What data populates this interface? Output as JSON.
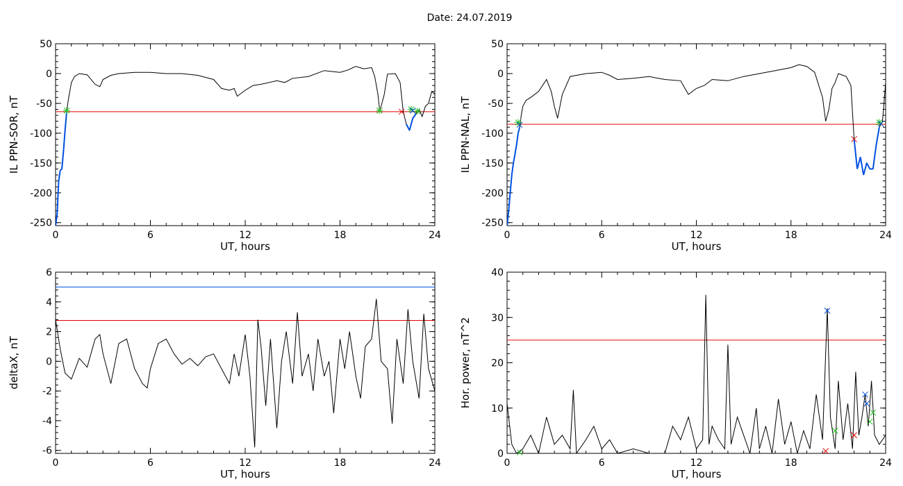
{
  "title": "Date:  24.07.2019",
  "colors": {
    "data": "#000000",
    "threshold": "#e00000",
    "blue": "#0050e0",
    "green": "#20c020",
    "red_marker": "#e00000",
    "blue_marker": "#0050e0"
  },
  "chart_data": [
    {
      "type": "line",
      "ylabel": "IL PPN-SOR, nT",
      "xlabel": "UT, hours",
      "xlim": [
        0,
        24
      ],
      "ylim": [
        -255,
        50
      ],
      "xticks": [
        0,
        6,
        12,
        18,
        24
      ],
      "yticks": [
        50,
        0,
        -50,
        -100,
        -150,
        -200,
        -250
      ],
      "threshold": -64,
      "x": [
        0,
        0.1,
        0.2,
        0.3,
        0.4,
        0.5,
        0.6,
        0.7,
        0.8,
        0.9,
        1.0,
        1.2,
        1.5,
        2.0,
        2.5,
        2.8,
        3.0,
        3.5,
        4.0,
        5.0,
        6.0,
        7.0,
        8.0,
        9.0,
        10.0,
        10.5,
        11.0,
        11.3,
        11.5,
        12.0,
        12.5,
        13.0,
        14.0,
        14.5,
        15.0,
        16.0,
        17.0,
        18.0,
        18.5,
        19.0,
        19.5,
        20.0,
        20.2,
        20.4,
        20.5,
        20.6,
        20.8,
        21.0,
        21.5,
        21.8,
        22.0,
        22.2,
        22.4,
        22.6,
        22.8,
        23.0,
        23.2,
        23.4,
        23.6,
        23.8,
        24.0
      ],
      "y": [
        -255,
        -235,
        -180,
        -162,
        -160,
        -130,
        -95,
        -65,
        -45,
        -30,
        -15,
        -5,
        0,
        -2,
        -18,
        -22,
        -10,
        -3,
        0,
        2,
        2,
        0,
        0,
        -3,
        -10,
        -25,
        -28,
        -25,
        -38,
        -28,
        -20,
        -18,
        -12,
        -15,
        -8,
        -5,
        5,
        2,
        6,
        12,
        8,
        10,
        -5,
        -35,
        -60,
        -55,
        -35,
        -1,
        0,
        -15,
        -64,
        -85,
        -95,
        -75,
        -68,
        -60,
        -72,
        -55,
        -50,
        -30,
        -35
      ],
      "markers": [
        {
          "x": 0.7,
          "y": -62,
          "color": "green",
          "shape": "star"
        },
        {
          "x": 20.5,
          "y": -62,
          "color": "red",
          "shape": "x"
        },
        {
          "x": 20.5,
          "y": -62,
          "color": "green",
          "shape": "star"
        },
        {
          "x": 21.9,
          "y": -64,
          "color": "red",
          "shape": "x"
        },
        {
          "x": 22.5,
          "y": -60,
          "color": "green",
          "shape": "star"
        },
        {
          "x": 22.9,
          "y": -63,
          "color": "green",
          "shape": "star"
        },
        {
          "x": 22.6,
          "y": -62,
          "color": "blue",
          "shape": "x"
        }
      ]
    },
    {
      "type": "line",
      "ylabel": "IL PPN-NAL, nT",
      "xlabel": "UT, hours",
      "xlim": [
        0,
        24
      ],
      "ylim": [
        -255,
        50
      ],
      "xticks": [
        0,
        6,
        12,
        18,
        24
      ],
      "yticks": [
        50,
        0,
        -50,
        -100,
        -150,
        -200,
        -250
      ],
      "threshold": -85,
      "x": [
        0,
        0.1,
        0.2,
        0.3,
        0.4,
        0.5,
        0.6,
        0.7,
        0.8,
        0.9,
        1.0,
        1.2,
        1.5,
        2.0,
        2.5,
        2.8,
        3.0,
        3.2,
        3.5,
        4.0,
        5.0,
        6.0,
        6.5,
        7.0,
        8.0,
        9.0,
        10.0,
        11.0,
        11.5,
        12.0,
        12.5,
        13.0,
        14.0,
        15.0,
        16.0,
        17.0,
        18.0,
        18.5,
        19.0,
        19.5,
        20.0,
        20.2,
        20.4,
        20.6,
        20.8,
        21.0,
        21.5,
        21.8,
        22.0,
        22.2,
        22.4,
        22.6,
        22.8,
        23.0,
        23.2,
        23.4,
        23.6,
        23.8,
        24.0
      ],
      "y": [
        -255,
        -230,
        -200,
        -170,
        -150,
        -135,
        -120,
        -100,
        -90,
        -70,
        -55,
        -45,
        -40,
        -30,
        -10,
        -30,
        -55,
        -75,
        -35,
        -5,
        0,
        2,
        -3,
        -10,
        -8,
        -5,
        -10,
        -12,
        -35,
        -25,
        -20,
        -10,
        -12,
        -5,
        0,
        5,
        10,
        15,
        12,
        2,
        -40,
        -80,
        -60,
        -25,
        -15,
        0,
        -5,
        -20,
        -110,
        -160,
        -140,
        -170,
        -150,
        -160,
        -160,
        -120,
        -90,
        -80,
        -15
      ],
      "markers": [
        {
          "x": 0.7,
          "y": -82,
          "color": "green",
          "shape": "star"
        },
        {
          "x": 0.8,
          "y": -86,
          "color": "blue",
          "shape": "x"
        },
        {
          "x": 22.0,
          "y": -110,
          "color": "red",
          "shape": "x"
        },
        {
          "x": 23.6,
          "y": -82,
          "color": "green",
          "shape": "star"
        },
        {
          "x": 23.7,
          "y": -84,
          "color": "blue",
          "shape": "x"
        }
      ]
    },
    {
      "type": "line",
      "ylabel": "deltaX, nT",
      "xlabel": "UT, hours",
      "xlim": [
        0,
        24
      ],
      "ylim": [
        -6.2,
        6
      ],
      "xticks": [
        0,
        6,
        12,
        18,
        24
      ],
      "yticks": [
        6,
        4,
        2,
        0,
        -2,
        -4,
        -6
      ],
      "threshold": 2.75,
      "threshold2": 5,
      "x": [
        0,
        0.3,
        0.6,
        1.0,
        1.5,
        2.0,
        2.5,
        2.8,
        3.0,
        3.5,
        4.0,
        4.5,
        5.0,
        5.5,
        5.8,
        6.0,
        6.5,
        7.0,
        7.5,
        8.0,
        8.5,
        9.0,
        9.5,
        10.0,
        10.5,
        11.0,
        11.3,
        11.6,
        12.0,
        12.3,
        12.6,
        12.8,
        13.0,
        13.3,
        13.6,
        14.0,
        14.3,
        14.6,
        15.0,
        15.3,
        15.6,
        16.0,
        16.3,
        16.6,
        17.0,
        17.3,
        17.6,
        18.0,
        18.3,
        18.6,
        19.0,
        19.3,
        19.6,
        20.0,
        20.3,
        20.6,
        21.0,
        21.3,
        21.6,
        22.0,
        22.3,
        22.6,
        23.0,
        23.3,
        23.6,
        24.0
      ],
      "y": [
        2.8,
        0.8,
        -0.8,
        -1.2,
        0.2,
        -0.4,
        1.5,
        1.8,
        0.5,
        -1.5,
        1.2,
        1.5,
        -0.5,
        -1.5,
        -1.8,
        -0.5,
        1.2,
        1.5,
        0.5,
        -0.2,
        0.2,
        -0.3,
        0.3,
        0.5,
        -0.5,
        -1.5,
        0.5,
        -1.0,
        1.8,
        -1.0,
        -5.8,
        2.8,
        1.0,
        -3.0,
        1.5,
        -4.5,
        0.0,
        2.0,
        -1.5,
        3.3,
        -1.0,
        0.5,
        -2.0,
        1.5,
        -1.0,
        0.0,
        -3.5,
        1.5,
        -0.5,
        2.0,
        -1.0,
        -2.5,
        1.0,
        1.5,
        4.2,
        0.0,
        -0.5,
        -4.2,
        1.5,
        -1.5,
        3.5,
        0.0,
        -2.5,
        3.2,
        -0.5,
        -2.0
      ]
    },
    {
      "type": "line",
      "ylabel": "Hor. power, nT^2",
      "xlabel": "UT, hours",
      "xlim": [
        0,
        24
      ],
      "ylim": [
        0,
        40
      ],
      "xticks": [
        0,
        6,
        12,
        18,
        24
      ],
      "yticks": [
        40,
        30,
        20,
        10,
        0
      ],
      "threshold": 25,
      "x": [
        0,
        0.3,
        0.6,
        1.0,
        1.5,
        2.0,
        2.5,
        3.0,
        3.5,
        4.0,
        4.2,
        4.4,
        5.0,
        5.5,
        6.0,
        6.5,
        7.0,
        8.0,
        9.0,
        10.0,
        10.5,
        11.0,
        11.5,
        12.0,
        12.4,
        12.6,
        12.8,
        13.0,
        13.4,
        13.8,
        14.0,
        14.2,
        14.6,
        15.0,
        15.4,
        15.8,
        16.0,
        16.4,
        16.8,
        17.2,
        17.6,
        18.0,
        18.4,
        18.8,
        19.2,
        19.6,
        20.0,
        20.3,
        20.5,
        20.8,
        21.0,
        21.3,
        21.6,
        21.9,
        22.1,
        22.3,
        22.5,
        22.7,
        22.9,
        23.1,
        23.3,
        23.6,
        24.0
      ],
      "y": [
        11,
        2,
        0,
        1,
        4,
        0,
        8,
        2,
        4,
        1,
        14,
        0,
        3,
        6,
        1,
        3,
        0,
        1,
        0,
        0,
        6,
        3,
        8,
        1,
        3,
        35,
        2,
        6,
        3,
        1,
        24,
        2,
        8,
        4,
        0,
        10,
        1,
        6,
        0,
        12,
        2,
        7,
        0,
        5,
        1,
        13,
        3,
        32,
        8,
        1,
        16,
        3,
        11,
        1,
        18,
        4,
        8,
        13,
        6,
        16,
        4,
        2,
        4
      ],
      "markers": [
        {
          "x": 0.8,
          "y": 0.2,
          "color": "green",
          "shape": "x"
        },
        {
          "x": 20.3,
          "y": 31.5,
          "color": "blue",
          "shape": "x"
        },
        {
          "x": 20.2,
          "y": 0.5,
          "color": "red",
          "shape": "x"
        },
        {
          "x": 20.8,
          "y": 5,
          "color": "green",
          "shape": "x"
        },
        {
          "x": 22.0,
          "y": 4,
          "color": "red",
          "shape": "x"
        },
        {
          "x": 22.7,
          "y": 13,
          "color": "blue",
          "shape": "x"
        },
        {
          "x": 22.8,
          "y": 11,
          "color": "blue",
          "shape": "x"
        },
        {
          "x": 23.0,
          "y": 7,
          "color": "green",
          "shape": "x"
        },
        {
          "x": 23.2,
          "y": 9,
          "color": "green",
          "shape": "x"
        }
      ]
    }
  ]
}
